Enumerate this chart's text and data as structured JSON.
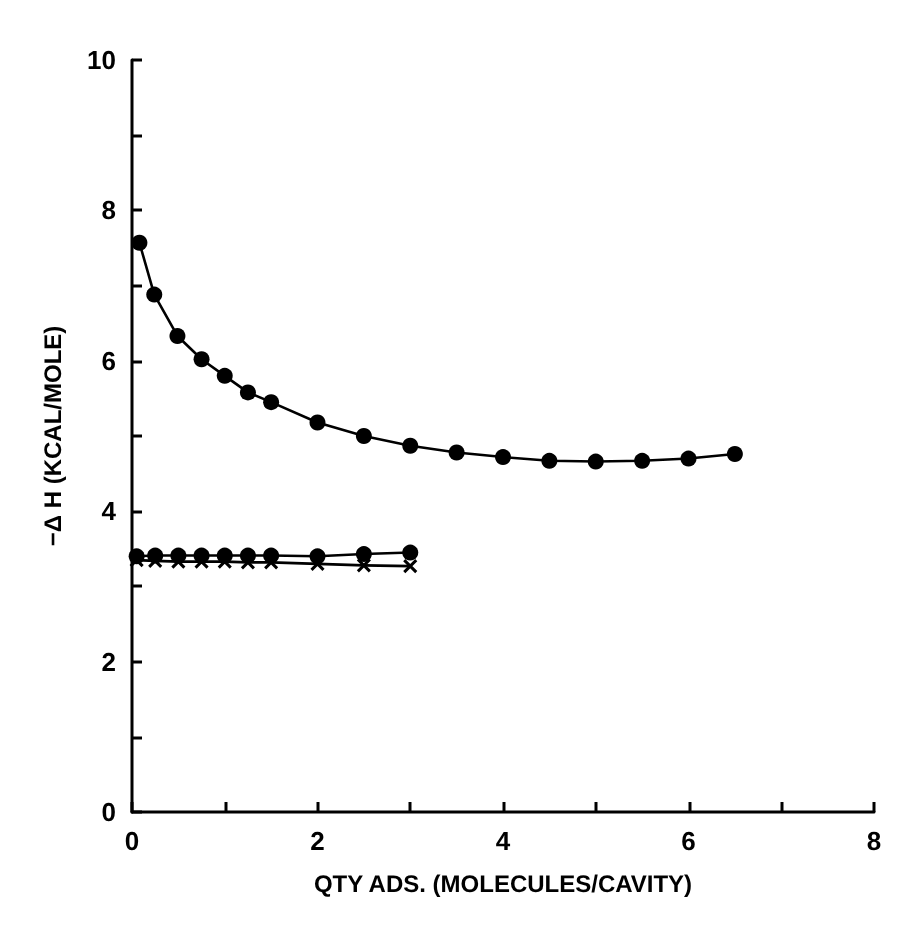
{
  "chart_data": {
    "type": "line",
    "xlabel": "QTY ADS. (MOLECULES/CAVITY)",
    "ylabel": "−Δ H (KCAL/MOLE)",
    "xlim": [
      0,
      8
    ],
    "ylim": [
      0,
      10
    ],
    "xticks": [
      0,
      {
        "value": 1,
        "label": null
      },
      2,
      {
        "value": 3,
        "label": null
      },
      4,
      {
        "value": 5,
        "label": null
      },
      6,
      {
        "value": 7,
        "label": null
      },
      8
    ],
    "yticks": [
      0,
      {
        "value": 1,
        "label": null
      },
      2,
      {
        "value": 3,
        "label": null
      },
      4,
      {
        "value": 5,
        "label": null
      },
      6,
      {
        "value": 7,
        "label": null
      },
      8,
      {
        "value": 9,
        "label": null
      },
      10
    ],
    "grid": false,
    "line_style": "solid",
    "series": [
      {
        "color": "#000000",
        "marker": "circle",
        "x": [
          0.08,
          0.24,
          0.49,
          0.75,
          1.0,
          1.25,
          1.5,
          2.0,
          2.5,
          3.0,
          3.5,
          4.0,
          4.5,
          5.0,
          5.5,
          6.0,
          6.5
        ],
        "values": [
          7.57,
          6.88,
          6.33,
          6.02,
          5.8,
          5.58,
          5.45,
          5.18,
          5.0,
          4.87,
          4.78,
          4.72,
          4.67,
          4.66,
          4.67,
          4.7,
          4.76
        ]
      },
      {
        "color": "#000000",
        "marker": "circle",
        "x": [
          0.05,
          0.25,
          0.5,
          0.75,
          1.0,
          1.25,
          1.5,
          2.0,
          2.5,
          3.0
        ],
        "values": [
          3.4,
          3.41,
          3.41,
          3.41,
          3.41,
          3.41,
          3.41,
          3.4,
          3.43,
          3.45
        ]
      },
      {
        "color": "#000000",
        "marker": "cross",
        "x": [
          0.05,
          0.25,
          0.5,
          0.75,
          1.0,
          1.25,
          1.5,
          2.0,
          2.5,
          3.0
        ],
        "values": [
          3.35,
          3.34,
          3.33,
          3.33,
          3.33,
          3.32,
          3.32,
          3.3,
          3.28,
          3.27
        ]
      }
    ]
  }
}
